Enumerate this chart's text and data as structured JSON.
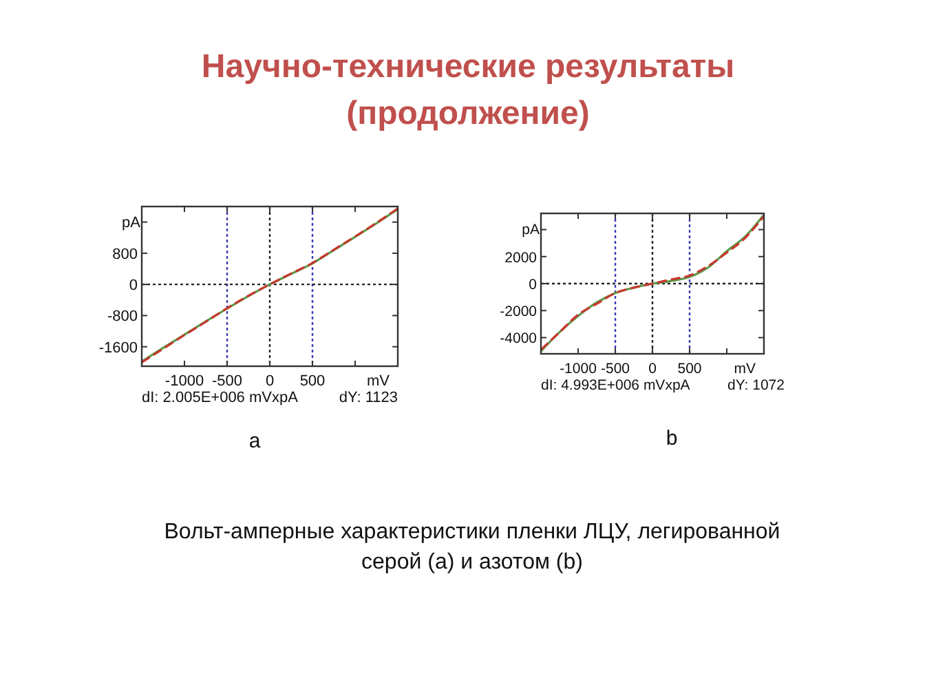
{
  "chart_data": [
    {
      "type": "line",
      "title": "Научно-технические результаты (продолжение)",
      "xlabel": "mV",
      "ylabel": "pA",
      "x": [
        -1500,
        -1250,
        -1000,
        -750,
        -500,
        -250,
        0,
        250,
        500,
        750,
        1000,
        1250,
        1500
      ],
      "series": [
        {
          "color": "#5a9a4a",
          "line_style": "solid",
          "values": [
            -1980,
            -1630,
            -1290,
            -950,
            -620,
            -300,
            0,
            270,
            540,
            880,
            1220,
            1570,
            1930
          ]
        },
        {
          "color": "#c8372d",
          "line_style": "dashed",
          "values": [
            -2000,
            -1650,
            -1300,
            -960,
            -610,
            -290,
            0,
            280,
            550,
            890,
            1230,
            1580,
            1950
          ]
        }
      ],
      "xlim": [
        -1500,
        1500
      ],
      "xticks": [
        -1000,
        -500,
        0,
        500,
        {
          "value": 1000,
          "label": null
        }
      ],
      "ylim": [
        -2100,
        2000
      ],
      "yticks": [
        -1600,
        -800,
        0,
        800,
        {
          "value": 1600,
          "label": null
        }
      ],
      "ref_lines": [
        {
          "axis": "x",
          "value": -500,
          "color": "#3a3ab4",
          "line_style": "dotted"
        },
        {
          "axis": "x",
          "value": 500,
          "color": "#3a3ab4",
          "line_style": "dotted"
        },
        {
          "axis": "x",
          "value": 0,
          "color": "#222222",
          "line_style": "dotted"
        },
        {
          "axis": "y",
          "value": 0,
          "color": "#222222",
          "line_style": "dotted"
        }
      ],
      "annotations": [
        "dI: 2.005E+006 mVxpA",
        "dY: 1123",
        "a"
      ]
    },
    {
      "type": "line",
      "xlabel": "mV",
      "ylabel": "pA",
      "x": [
        -1500,
        -1250,
        -1000,
        -750,
        -500,
        -250,
        0,
        250,
        500,
        750,
        1000,
        1250,
        1500
      ],
      "series": [
        {
          "color": "#5a9a4a",
          "line_style": "solid",
          "values": [
            -5000,
            -3600,
            -2400,
            -1400,
            -700,
            -300,
            0,
            200,
            500,
            1200,
            2400,
            3500,
            5100
          ]
        },
        {
          "color": "#c8372d",
          "line_style": "dashed",
          "values": [
            -4900,
            -3600,
            -2300,
            -1500,
            -700,
            -300,
            0,
            300,
            600,
            1300,
            2300,
            3400,
            5000
          ]
        }
      ],
      "xlim": [
        -1500,
        1500
      ],
      "xticks": [
        -1000,
        -500,
        0,
        500,
        {
          "value": 1000,
          "label": null
        }
      ],
      "ylim": [
        -5200,
        5200
      ],
      "yticks": [
        -4000,
        -2000,
        0,
        2000,
        {
          "value": 4000,
          "label": null
        }
      ],
      "ref_lines": [
        {
          "axis": "x",
          "value": -500,
          "color": "#3a3ab4",
          "line_style": "dotted"
        },
        {
          "axis": "x",
          "value": 500,
          "color": "#3a3ab4",
          "line_style": "dotted"
        },
        {
          "axis": "x",
          "value": 0,
          "color": "#222222",
          "line_style": "dotted"
        },
        {
          "axis": "y",
          "value": 0,
          "color": "#222222",
          "line_style": "dotted"
        }
      ],
      "annotations": [
        "dI: 4.993E+006 mVxpA",
        "dY: 1072",
        "b",
        "Вольт-амперные характеристики пленки ЛЦУ, легированной серой (a) и азотом (b)"
      ]
    }
  ]
}
